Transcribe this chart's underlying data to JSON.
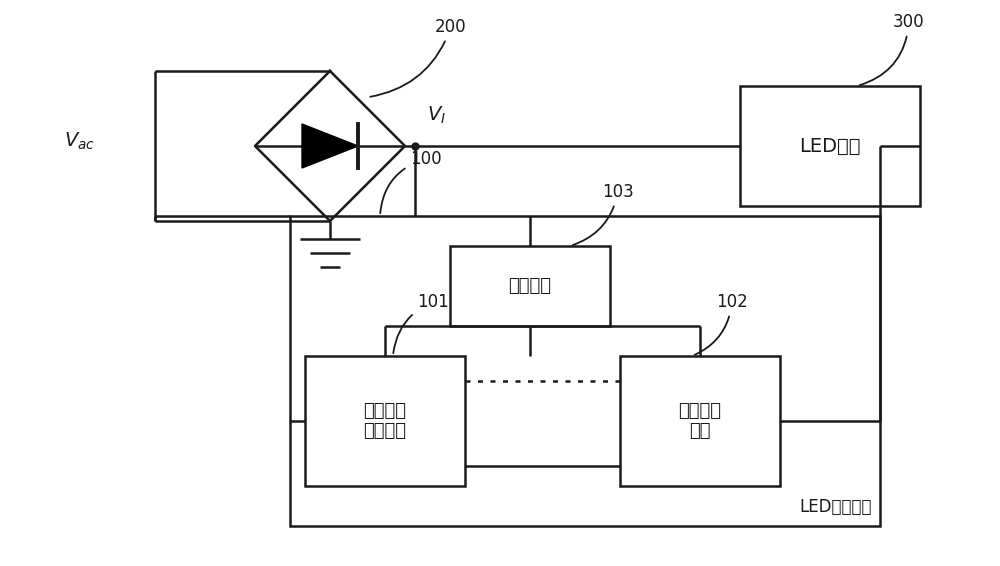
{
  "bg_color": "#ffffff",
  "line_color": "#1a1a1a",
  "line_width": 1.8,
  "fig_width": 10.0,
  "fig_height": 5.66,
  "vac_label": "$V_{ac}$",
  "vi_label": "$V_I$",
  "label_200": "200",
  "label_300": "300",
  "label_100": "100",
  "label_101": "101",
  "label_102": "102",
  "label_103": "103",
  "led_load_label": "LED负载",
  "power_module_label": "电源模块",
  "pfc_module_label": "功率因数\n控制模块",
  "cc_module_label": "恒流控制\n模块",
  "led_drive_label": "LED驱动电路",
  "font_size_vac": 14,
  "font_size_vi": 14,
  "font_size_ref": 12,
  "font_size_box": 13,
  "font_size_box_led": 14,
  "font_size_bottom": 12
}
